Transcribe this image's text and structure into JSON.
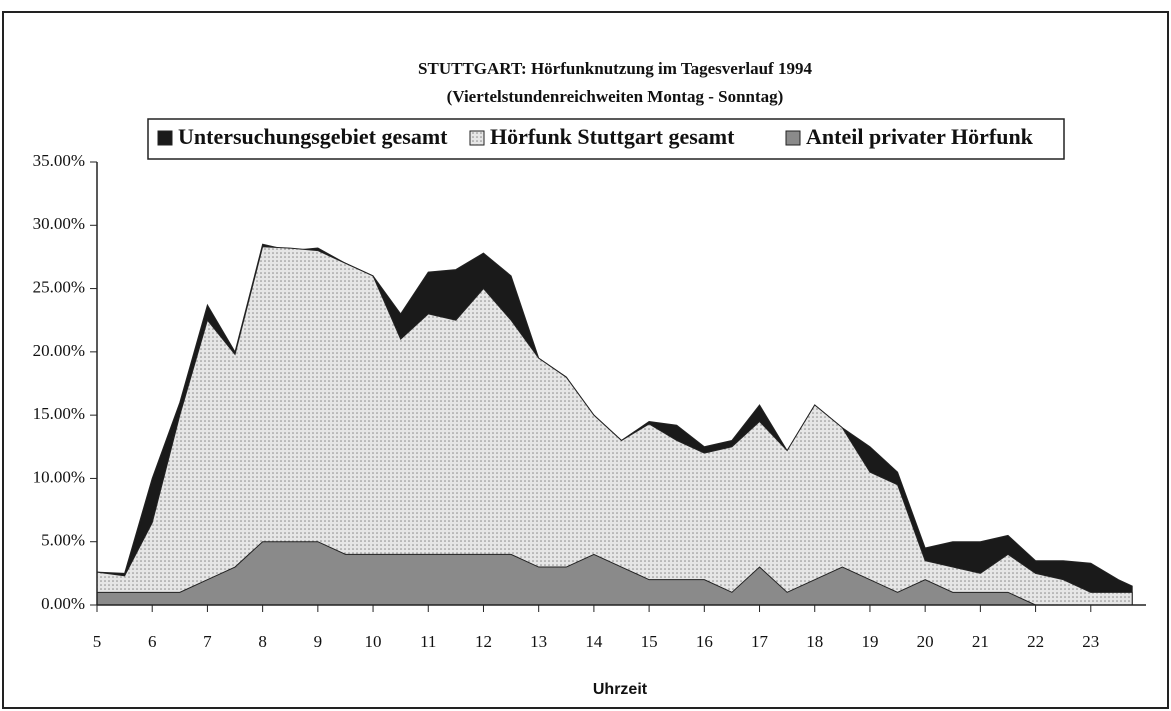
{
  "chart_data": {
    "type": "area",
    "title": "STUTTGART: Hörfunknutzung im Tagesverlauf 1994",
    "subtitle": "(Viertelstundenreichweiten Montag - Sonntag)",
    "x_label": "Uhrzeit",
    "x": [
      5,
      5.5,
      6,
      6.5,
      7,
      7.5,
      8,
      8.5,
      9,
      9.5,
      10,
      10.5,
      11,
      11.5,
      12,
      12.5,
      13,
      13.5,
      14,
      14.5,
      15,
      15.5,
      16,
      16.5,
      17,
      17.5,
      18,
      18.5,
      19,
      19.5,
      20,
      20.5,
      21,
      21.5,
      22,
      22.5,
      23,
      23.5,
      23.75
    ],
    "series": [
      {
        "name": "Untersuchungsgebiet gesamt",
        "color": "#1a1a1a",
        "values": [
          2.6,
          2.5,
          10,
          16,
          23.7,
          20,
          28.5,
          28,
          28.2,
          27,
          26,
          23,
          26.3,
          26.5,
          27.8,
          26,
          19.5,
          18,
          15,
          13,
          14.5,
          14.2,
          12.5,
          13,
          15.8,
          12.2,
          15.8,
          14,
          12.5,
          10.5,
          4.5,
          5,
          5,
          5.5,
          3.5,
          3.5,
          3.3,
          2,
          1.5
        ]
      },
      {
        "name": "Hörfunk Stuttgart gesamt",
        "color": "#d9d9d9",
        "values": [
          2.6,
          2.3,
          6.5,
          15,
          22.5,
          19.8,
          28.3,
          28.2,
          28,
          27,
          26,
          21,
          23,
          22.5,
          25,
          22.5,
          19.5,
          18,
          15,
          13,
          14.3,
          13,
          12,
          12.5,
          14.5,
          12.2,
          15.8,
          14,
          10.5,
          9.5,
          3.5,
          3,
          2.5,
          4,
          2.5,
          2,
          1,
          1,
          1
        ]
      },
      {
        "name": "Anteil privater Hörfunk",
        "color": "#8a8a8a",
        "values": [
          1,
          1,
          1,
          1,
          2,
          3,
          5,
          5,
          5,
          4,
          4,
          4,
          4,
          4,
          4,
          4,
          3,
          3,
          4,
          3,
          2,
          2,
          2,
          1,
          3,
          1,
          2,
          3,
          2,
          1,
          2,
          1,
          1,
          1,
          0,
          0,
          0,
          0,
          0
        ]
      }
    ],
    "xlim": [
      5,
      24
    ],
    "xticks": [
      5,
      6,
      7,
      8,
      9,
      10,
      11,
      12,
      13,
      14,
      15,
      16,
      17,
      18,
      19,
      20,
      21,
      22,
      23
    ],
    "ylim": [
      0,
      35
    ],
    "yticks": [
      {
        "value": 0,
        "label": "0.00%"
      },
      {
        "value": 5,
        "label": "5.00%"
      },
      {
        "value": 10,
        "label": "10.00%"
      },
      {
        "value": 15,
        "label": "15.00%"
      },
      {
        "value": 20,
        "label": "20.00%"
      },
      {
        "value": 25,
        "label": "25.00%"
      },
      {
        "value": 30,
        "label": "30.00%"
      },
      {
        "value": 35,
        "label": "35.00%"
      }
    ],
    "legend": "top"
  }
}
